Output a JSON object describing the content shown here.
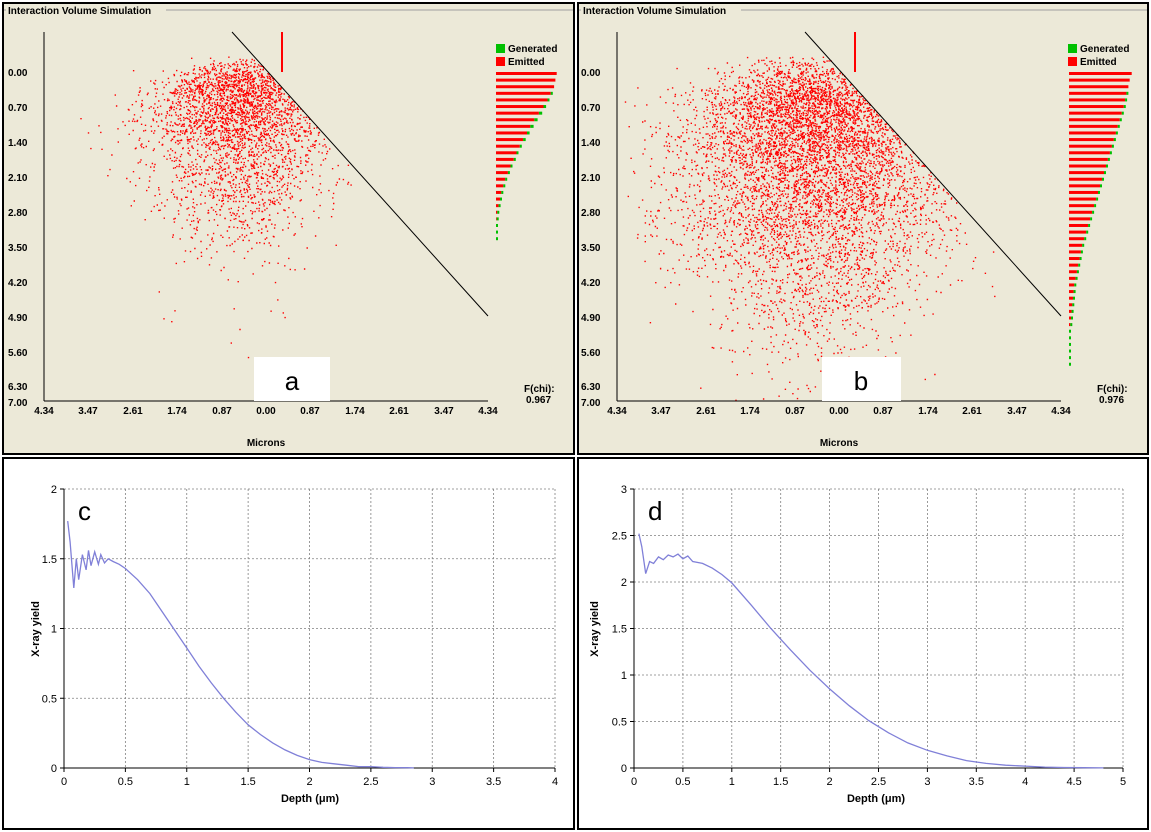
{
  "panels": {
    "a": {
      "window_title": "Interaction Volume Simulation",
      "letter": "a",
      "xlabel": "Microns",
      "x_ticks": [
        "4.34",
        "3.47",
        "2.61",
        "1.74",
        "0.87",
        "0.00",
        "0.87",
        "1.74",
        "2.61",
        "3.47",
        "4.34"
      ],
      "y_ticks": [
        "0.00",
        "0.70",
        "1.40",
        "2.10",
        "2.80",
        "3.50",
        "4.20",
        "4.90",
        "5.60",
        "6.30",
        "7.00"
      ],
      "legend": {
        "generated": "Generated",
        "emitted": "Emitted"
      },
      "fchi_label": "F(chi):",
      "fchi_value": "0.967"
    },
    "b": {
      "window_title": "Interaction Volume Simulation",
      "letter": "b",
      "xlabel": "Microns",
      "x_ticks": [
        "4.34",
        "3.47",
        "2.61",
        "1.74",
        "0.87",
        "0.00",
        "0.87",
        "1.74",
        "2.61",
        "3.47",
        "4.34"
      ],
      "y_ticks": [
        "0.00",
        "0.70",
        "1.40",
        "2.10",
        "2.80",
        "3.50",
        "4.20",
        "4.90",
        "5.60",
        "6.30",
        "7.00"
      ],
      "legend": {
        "generated": "Generated",
        "emitted": "Emitted"
      },
      "fchi_label": "F(chi):",
      "fchi_value": "0.976"
    },
    "c": {
      "letter": "c",
      "xlabel": "Depth (μm)",
      "ylabel": "X-ray yield"
    },
    "d": {
      "letter": "d",
      "xlabel": "Depth (μm)",
      "ylabel": "X-ray yield"
    }
  },
  "colors": {
    "sim_background": "#ece9d8",
    "electron": "#ff0000",
    "generated": "#00c000",
    "emitted": "#ff0000",
    "curve": "#8080d8",
    "grid": "#808080"
  },
  "chart_data": [
    {
      "panel": "a",
      "type": "scatter",
      "xlabel": "Microns",
      "ylabel": "",
      "xlim": [
        -4.34,
        4.34
      ],
      "ylim": [
        7.0,
        -0.4
      ],
      "legend": [
        "Generated",
        "Emitted"
      ],
      "legend_position": "top-right",
      "F_chi": 0.967,
      "interaction_volume_max_depth": 4.2,
      "histogram_depth_step": 0.14,
      "histogram_emitted": [
        0.92,
        0.9,
        0.88,
        0.83,
        0.78,
        0.72,
        0.65,
        0.58,
        0.52,
        0.47,
        0.41,
        0.36,
        0.31,
        0.27,
        0.22,
        0.18,
        0.14,
        0.11,
        0.08,
        0.06,
        0.04,
        0.02,
        0.01
      ],
      "histogram_generated_extra": [
        0,
        0,
        0,
        0.02,
        0.03,
        0.04,
        0.05,
        0.05,
        0.05,
        0.04,
        0.04,
        0.03,
        0.03,
        0.02,
        0.02,
        0.02,
        0.01,
        0.01,
        0.01,
        0.01,
        0.01,
        0.01,
        0.01,
        0.01,
        0.01,
        0.01
      ]
    },
    {
      "panel": "b",
      "type": "scatter",
      "xlabel": "Microns",
      "ylabel": "",
      "xlim": [
        -4.34,
        4.34
      ],
      "ylim": [
        7.0,
        -0.4
      ],
      "legend": [
        "Generated",
        "Emitted"
      ],
      "legend_position": "top-right",
      "F_chi": 0.976,
      "interaction_volume_max_depth": 6.3,
      "histogram_depth_step": 0.14,
      "histogram_emitted": [
        0.95,
        0.92,
        0.9,
        0.87,
        0.85,
        0.83,
        0.8,
        0.77,
        0.74,
        0.71,
        0.68,
        0.65,
        0.62,
        0.59,
        0.56,
        0.53,
        0.5,
        0.47,
        0.44,
        0.41,
        0.38,
        0.35,
        0.32,
        0.29,
        0.26,
        0.23,
        0.2,
        0.18,
        0.16,
        0.14,
        0.12,
        0.1,
        0.08,
        0.07,
        0.06,
        0.05,
        0.04,
        0.03,
        0.02
      ],
      "histogram_generated_extra": [
        0,
        0,
        0,
        0.01,
        0.02,
        0.02,
        0.03,
        0.03,
        0.03,
        0.03,
        0.03,
        0.03,
        0.03,
        0.03,
        0.02,
        0.02,
        0.02,
        0.02,
        0.02,
        0.02,
        0.02,
        0.02,
        0.02,
        0.02,
        0.02,
        0.02,
        0.01,
        0.01,
        0.01,
        0.01,
        0.01,
        0.01,
        0.01,
        0.01,
        0.01,
        0.01,
        0.01,
        0.01,
        0.01,
        0.01,
        0.01,
        0.01,
        0.01,
        0.01,
        0.01
      ]
    },
    {
      "panel": "c",
      "type": "line",
      "xlabel": "Depth (μm)",
      "ylabel": "X-ray yield",
      "xlim": [
        0,
        4
      ],
      "ylim": [
        0,
        2
      ],
      "x_ticks": [
        0,
        0.5,
        1,
        1.5,
        2,
        2.5,
        3,
        3.5,
        4
      ],
      "y_ticks": [
        0,
        0.5,
        1,
        1.5,
        2
      ],
      "grid": true,
      "series": [
        {
          "x": [
            0.03,
            0.05,
            0.08,
            0.1,
            0.12,
            0.15,
            0.18,
            0.2,
            0.22,
            0.25,
            0.28,
            0.3,
            0.33,
            0.36,
            0.4,
            0.45,
            0.5,
            0.6,
            0.7,
            0.8,
            0.9,
            1.0,
            1.1,
            1.2,
            1.3,
            1.4,
            1.5,
            1.6,
            1.7,
            1.8,
            1.9,
            2.0,
            2.1,
            2.2,
            2.3,
            2.4,
            2.5,
            2.6,
            2.7,
            2.8,
            2.85
          ],
          "y": [
            1.77,
            1.62,
            1.29,
            1.5,
            1.35,
            1.53,
            1.42,
            1.56,
            1.45,
            1.55,
            1.46,
            1.53,
            1.47,
            1.5,
            1.48,
            1.46,
            1.43,
            1.35,
            1.25,
            1.12,
            0.99,
            0.86,
            0.73,
            0.61,
            0.5,
            0.4,
            0.31,
            0.24,
            0.18,
            0.13,
            0.09,
            0.06,
            0.04,
            0.03,
            0.02,
            0.01,
            0.01,
            0.005,
            0.003,
            0.002,
            0.001
          ]
        }
      ]
    },
    {
      "panel": "d",
      "type": "line",
      "xlabel": "Depth (μm)",
      "ylabel": "X-ray yield",
      "xlim": [
        0,
        5
      ],
      "ylim": [
        0,
        3
      ],
      "x_ticks": [
        0,
        0.5,
        1,
        1.5,
        2,
        2.5,
        3,
        3.5,
        4,
        4.5,
        5
      ],
      "y_ticks": [
        0,
        0.5,
        1,
        1.5,
        2,
        2.5,
        3
      ],
      "grid": true,
      "series": [
        {
          "x": [
            0.05,
            0.08,
            0.12,
            0.16,
            0.2,
            0.25,
            0.3,
            0.35,
            0.4,
            0.45,
            0.5,
            0.55,
            0.6,
            0.7,
            0.8,
            0.9,
            1.0,
            1.2,
            1.4,
            1.6,
            1.8,
            2.0,
            2.2,
            2.4,
            2.6,
            2.8,
            3.0,
            3.2,
            3.4,
            3.6,
            3.8,
            4.0,
            4.2,
            4.4,
            4.6,
            4.8
          ],
          "y": [
            2.52,
            2.38,
            2.09,
            2.22,
            2.2,
            2.27,
            2.24,
            2.29,
            2.27,
            2.3,
            2.25,
            2.28,
            2.22,
            2.2,
            2.15,
            2.08,
            1.99,
            1.75,
            1.5,
            1.27,
            1.05,
            0.85,
            0.67,
            0.51,
            0.38,
            0.27,
            0.19,
            0.13,
            0.08,
            0.05,
            0.03,
            0.02,
            0.01,
            0.005,
            0.003,
            0.001
          ]
        }
      ]
    }
  ]
}
